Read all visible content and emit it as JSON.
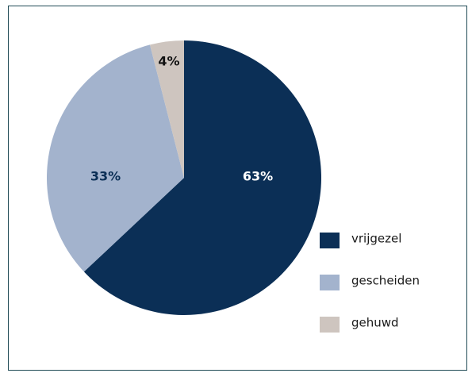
{
  "chart_data": {
    "type": "pie",
    "categories": [
      "vrijgezel",
      "gescheiden",
      "gehuwd"
    ],
    "values": [
      63,
      33,
      4
    ],
    "value_labels": [
      "63%",
      "33%",
      "4%"
    ],
    "colors": [
      "#0b2f56",
      "#a3b3cd",
      "#cec5bf"
    ]
  }
}
